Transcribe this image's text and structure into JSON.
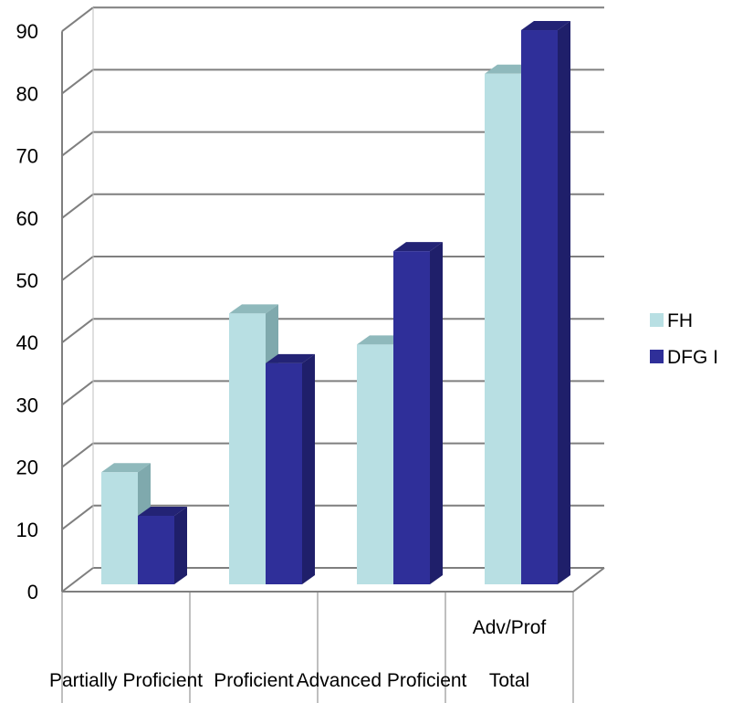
{
  "chart_data": {
    "type": "bar",
    "style": "3d-clustered-column",
    "categories": [
      "Partially Proficient",
      "Proficient",
      "Advanced Proficient",
      "Total"
    ],
    "category_sublabels": [
      "",
      "",
      "",
      "Adv/Prof"
    ],
    "series": [
      {
        "name": "FH",
        "color": "#b8dfe3",
        "side_color": "#7fa9ad",
        "top_color": "#8fb9bc",
        "values": [
          18,
          43.5,
          38.5,
          82
        ]
      },
      {
        "name": "DFG I",
        "color": "#2f2f99",
        "side_color": "#1f1f6a",
        "top_color": "#232375",
        "values": [
          11,
          35.5,
          53.5,
          89
        ]
      }
    ],
    "yticks": [
      0,
      10,
      20,
      30,
      40,
      50,
      60,
      70,
      80,
      90
    ],
    "ylim": [
      0,
      90
    ],
    "grid": true,
    "legend": "right",
    "title": "",
    "xlabel": "",
    "ylabel": ""
  }
}
